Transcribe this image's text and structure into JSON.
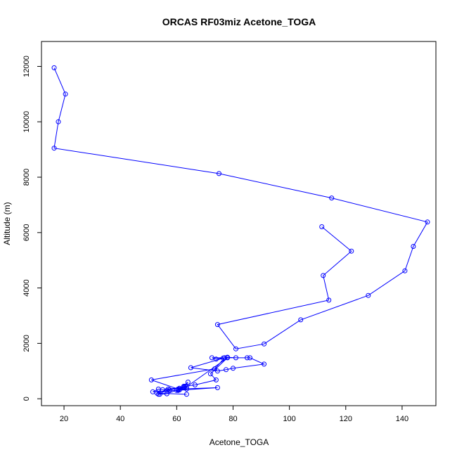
{
  "chart_data": {
    "type": "line",
    "title": "ORCAS RF03miz Acetone_TOGA",
    "xlabel": "Acetone_TOGA",
    "ylabel": "Altitude (m)",
    "xlim": [
      12,
      152
    ],
    "ylim": [
      -250,
      12900
    ],
    "xticks": [
      20,
      40,
      60,
      80,
      100,
      120,
      140
    ],
    "yticks": [
      0,
      2000,
      4000,
      6000,
      8000,
      10000,
      12000
    ],
    "grid": false,
    "legend": "none",
    "color": "#0000ff",
    "series": [
      {
        "x": [
          16.5,
          20.5,
          18.0,
          16.5,
          75.0,
          115.0,
          149.0,
          144.0,
          141.0,
          128.0,
          104.0,
          91.0,
          81.0,
          74.5,
          114.0,
          112.0,
          122.0,
          111.5
        ],
        "y": [
          11950,
          11000,
          10000,
          9050,
          8130,
          7250,
          6380,
          5500,
          4620,
          3730,
          2850,
          1980,
          1800,
          2680,
          3560,
          4450,
          5330,
          6210
        ]
      },
      {
        "x": [
          81.0,
          78.0,
          76.5,
          74.0,
          72.5,
          85.0,
          86.0,
          91.0,
          80.0,
          77.5,
          74.5,
          65.0,
          77.0,
          73.5,
          51.0,
          60.5,
          74.5,
          60.0,
          51.5,
          53.5,
          55.0,
          57.5,
          61.0,
          62.5,
          64.0,
          60.5,
          62.5,
          56.5,
          53.5,
          54.0,
          56.5,
          60.5,
          63.5,
          61.0,
          63.0,
          66.5,
          74.0,
          72.0,
          78.0,
          63.5,
          57.0,
          53.0,
          63.5
        ],
        "y": [
          1480,
          1500,
          1470,
          1430,
          1480,
          1480,
          1480,
          1250,
          1100,
          1050,
          1000,
          1120,
          1480,
          1080,
          680,
          350,
          400,
          300,
          250,
          350,
          330,
          320,
          380,
          420,
          600,
          300,
          450,
          300,
          160,
          160,
          180,
          330,
          350,
          320,
          450,
          500,
          680,
          900,
          1480,
          430,
          350,
          200,
          160
        ]
      }
    ]
  }
}
